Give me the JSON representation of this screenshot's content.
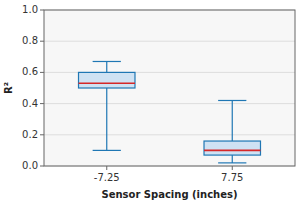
{
  "chart_data": {
    "type": "box",
    "xlabel": "Sensor Spacing (inches)",
    "ylabel": "R²",
    "categories": [
      "-7.25",
      "7.75"
    ],
    "boxes": [
      {
        "whislo": 0.1,
        "q1": 0.5,
        "med": 0.53,
        "q3": 0.6,
        "whishi": 0.67
      },
      {
        "whislo": 0.02,
        "q1": 0.07,
        "med": 0.1,
        "q3": 0.16,
        "whishi": 0.42
      }
    ],
    "ylim": [
      0.0,
      1.0
    ],
    "yticks": [
      {
        "value": 0.0,
        "label": "0.0"
      },
      0.2,
      0.4,
      0.6,
      0.8,
      {
        "value": 1.0,
        "label": "1.0"
      }
    ],
    "grid": true
  }
}
